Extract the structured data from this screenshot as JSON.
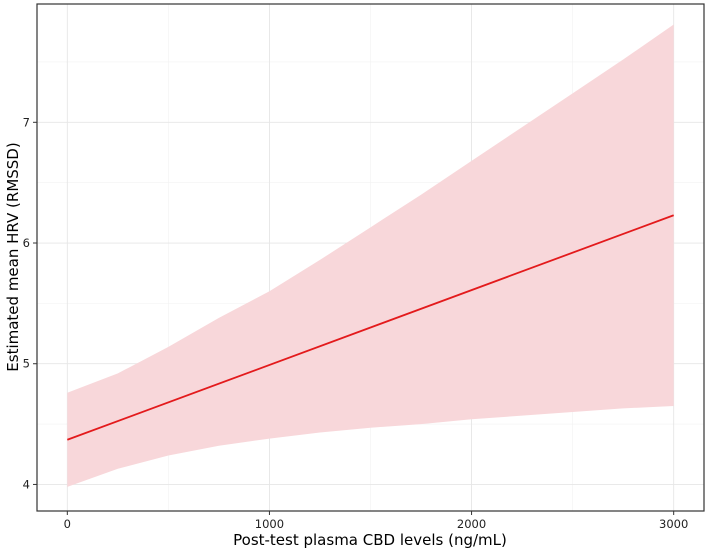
{
  "chart_data": {
    "type": "line",
    "title": "",
    "xlabel": "Post-test plasma CBD levels (ng/mL)",
    "ylabel": "Estimated mean HRV (RMSSD)",
    "xlim": [
      -150,
      3150
    ],
    "ylim": [
      3.78,
      7.98
    ],
    "x_ticks": [
      0,
      1000,
      2000,
      3000
    ],
    "y_ticks": [
      4,
      5,
      6,
      7
    ],
    "x_tick_labels": [
      "0",
      "1000",
      "2000",
      "3000"
    ],
    "y_tick_labels": [
      "4",
      "5",
      "6",
      "7"
    ],
    "grid": true,
    "legend": "none",
    "line_color": "#e31a1c",
    "band_color": "#f8d7da",
    "series": [
      {
        "x": [
          0,
          3000
        ],
        "y": [
          4.37,
          6.23
        ]
      }
    ],
    "confidence_band": {
      "x": [
        0,
        250,
        500,
        750,
        1000,
        1250,
        1500,
        1750,
        2000,
        2250,
        2500,
        2750,
        3000
      ],
      "lower": [
        3.98,
        4.13,
        4.24,
        4.32,
        4.38,
        4.43,
        4.47,
        4.5,
        4.54,
        4.57,
        4.6,
        4.63,
        4.65
      ],
      "upper": [
        4.76,
        4.92,
        5.14,
        5.38,
        5.6,
        5.86,
        6.13,
        6.4,
        6.68,
        6.96,
        7.24,
        7.52,
        7.81
      ]
    }
  }
}
